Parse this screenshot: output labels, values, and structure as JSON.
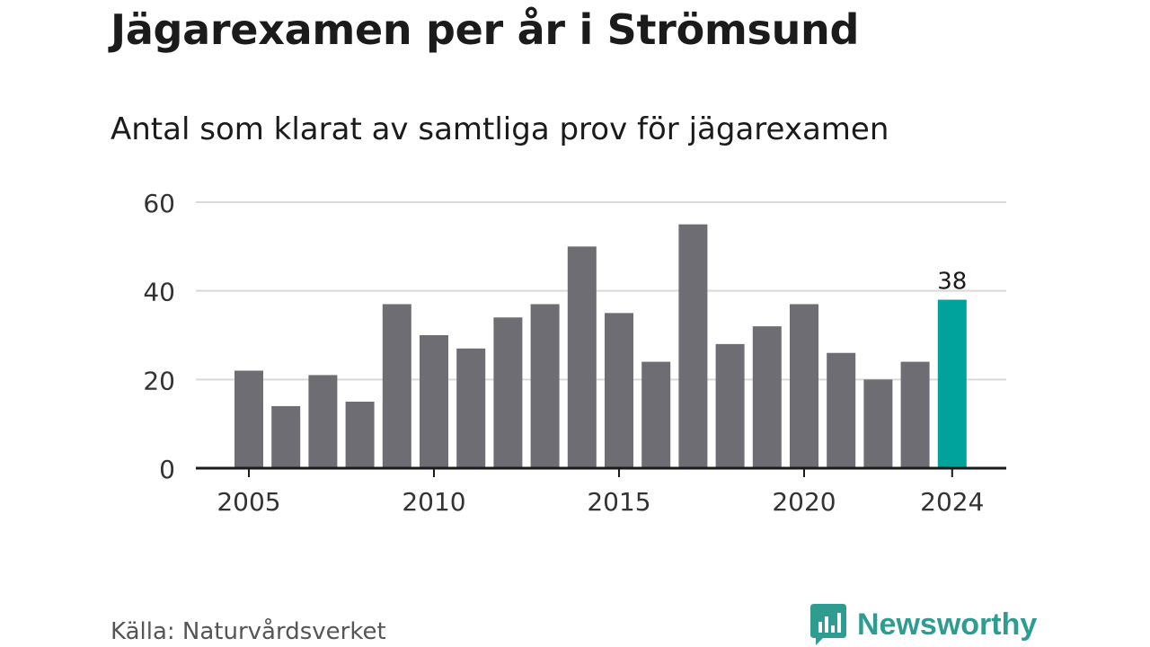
{
  "header": {
    "title": "Jägarexamen per år i Strömsund",
    "subtitle": "Antal som klarat av samtliga prov för jägarexamen"
  },
  "footer": {
    "source": "Källa: Naturvårdsverket",
    "brand": "Newsworthy",
    "brand_icon": "bar-chart-speech-bubble-icon"
  },
  "colors": {
    "bar": "#6e6d73",
    "highlight": "#00a39b",
    "grid": "#d9d9d9",
    "axis": "#1b1b1b",
    "brand": "#2e9c90"
  },
  "chart_data": {
    "type": "bar",
    "categories": [
      2005,
      2006,
      2007,
      2008,
      2009,
      2010,
      2011,
      2012,
      2013,
      2014,
      2015,
      2016,
      2017,
      2018,
      2019,
      2020,
      2021,
      2022,
      2023,
      2024
    ],
    "values": [
      22,
      14,
      21,
      15,
      37,
      30,
      27,
      34,
      37,
      50,
      35,
      24,
      55,
      28,
      32,
      37,
      26,
      20,
      24,
      38
    ],
    "highlight_index": 19,
    "highlight_label": "38",
    "ylim": [
      0,
      60
    ],
    "yticks": [
      0,
      20,
      40,
      60
    ],
    "xticks": [
      2005,
      2010,
      2015,
      2020,
      2024
    ],
    "grid": true,
    "legend": "none"
  }
}
